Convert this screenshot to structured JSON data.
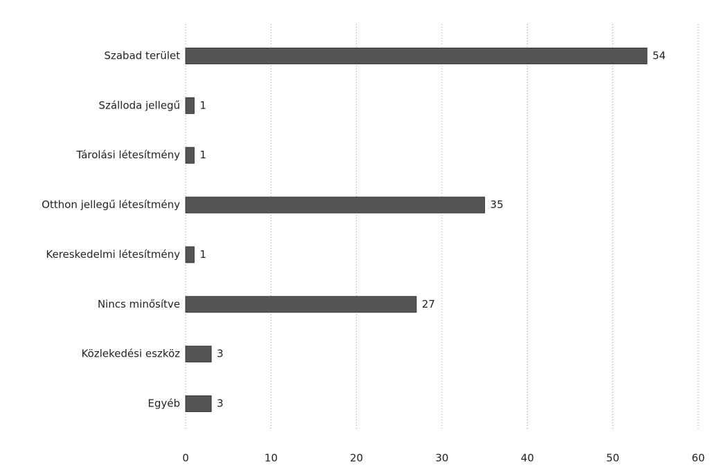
{
  "chart_data": {
    "type": "bar",
    "orientation": "horizontal",
    "categories": [
      "Szabad terület",
      "Szálloda jellegű",
      "Tárolási létesítmény",
      "Otthon jellegű létesítmény",
      "Kereskedelmi létesítmény",
      "Nincs minősítve",
      "Közlekedési eszköz",
      "Egyéb"
    ],
    "values": [
      54,
      1,
      1,
      35,
      1,
      27,
      3,
      3
    ],
    "color": "#555555",
    "xlim": [
      0,
      60
    ],
    "xticks": [
      0,
      10,
      20,
      30,
      40,
      50,
      60
    ],
    "grid": true
  }
}
